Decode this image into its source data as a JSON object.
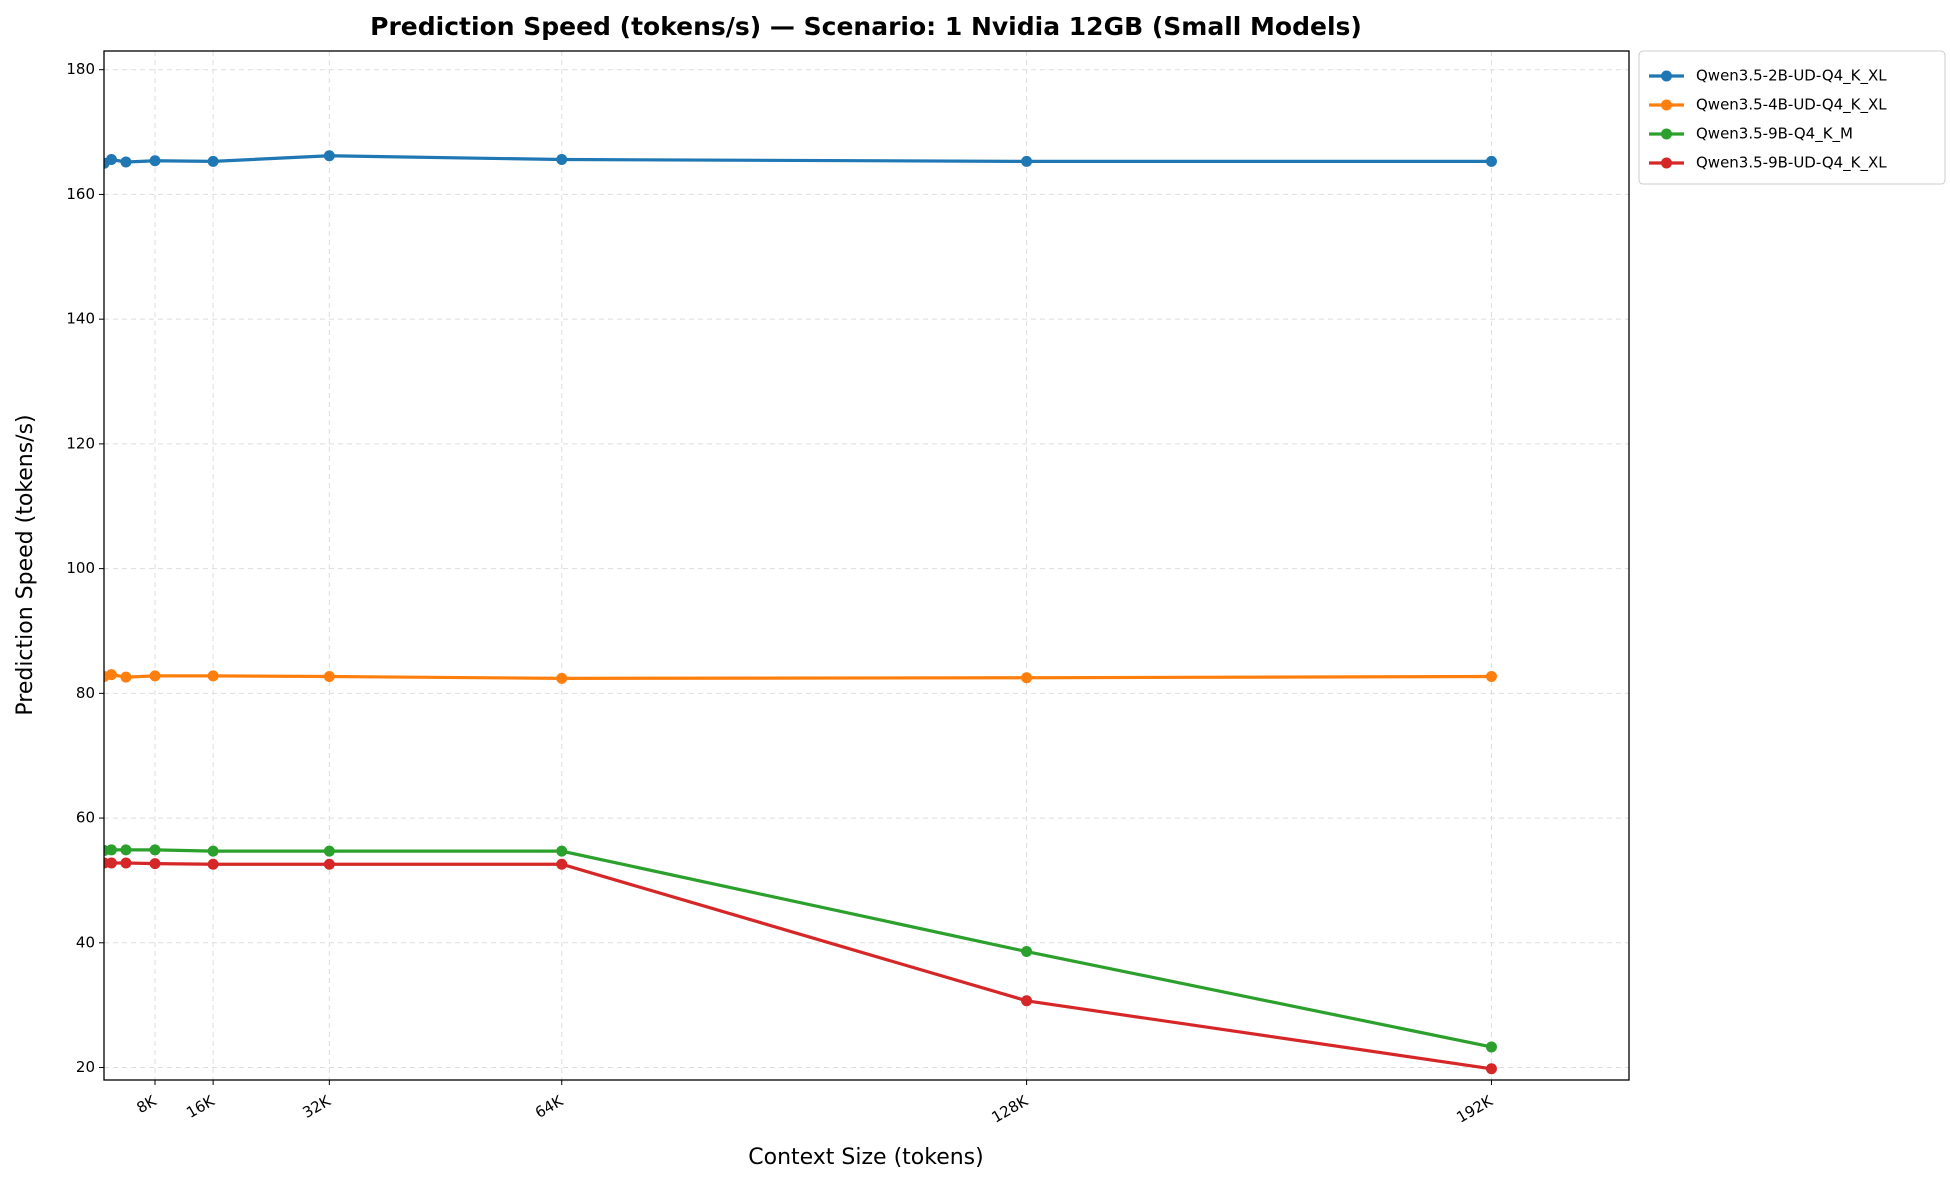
{
  "chart_data": {
    "type": "line",
    "title": "Prediction Speed (tokens/s) — Scenario: 1 Nvidia 12GB (Small Models)",
    "x_label": "Context Size (tokens)",
    "y_label": "Prediction Speed (tokens/s)",
    "x": [
      1024,
      2048,
      4096,
      8192,
      16384,
      32768,
      65536,
      131072,
      196608
    ],
    "series": [
      {
        "name": "Qwen3.5-2B-UD-Q4_K_XL",
        "color": "#1f77b4",
        "values": [
          165.0,
          165.6,
          165.2,
          165.4,
          165.3,
          166.2,
          165.6,
          165.3,
          165.3
        ]
      },
      {
        "name": "Qwen3.5-4B-UD-Q4_K_XL",
        "color": "#ff7f0e",
        "values": [
          82.7,
          83.0,
          82.6,
          82.8,
          82.8,
          82.7,
          82.4,
          82.5,
          82.7
        ]
      },
      {
        "name": "Qwen3.5-9B-Q4_K_M",
        "color": "#2ca02c",
        "values": [
          54.8,
          54.9,
          54.9,
          54.9,
          54.7,
          54.7,
          54.7,
          38.6,
          23.3
        ]
      },
      {
        "name": "Qwen3.5-9B-UD-Q4_K_XL",
        "color": "#d62728",
        "values": [
          52.8,
          52.8,
          52.8,
          52.7,
          52.6,
          52.6,
          52.6,
          30.7,
          19.8
        ]
      }
    ],
    "xlim": [
      1000,
      216000
    ],
    "ylim": [
      18,
      183
    ],
    "xticks": [
      {
        "value": 8192,
        "label": "8K"
      },
      {
        "value": 16384,
        "label": "16K"
      },
      {
        "value": 32768,
        "label": "32K"
      },
      {
        "value": 65536,
        "label": "64K"
      },
      {
        "value": 131072,
        "label": "128K"
      },
      {
        "value": 196608,
        "label": "192K"
      }
    ],
    "yticks": [
      20,
      40,
      60,
      80,
      100,
      120,
      140,
      160,
      180
    ],
    "grid": true,
    "legend": "outside-upper-right"
  }
}
